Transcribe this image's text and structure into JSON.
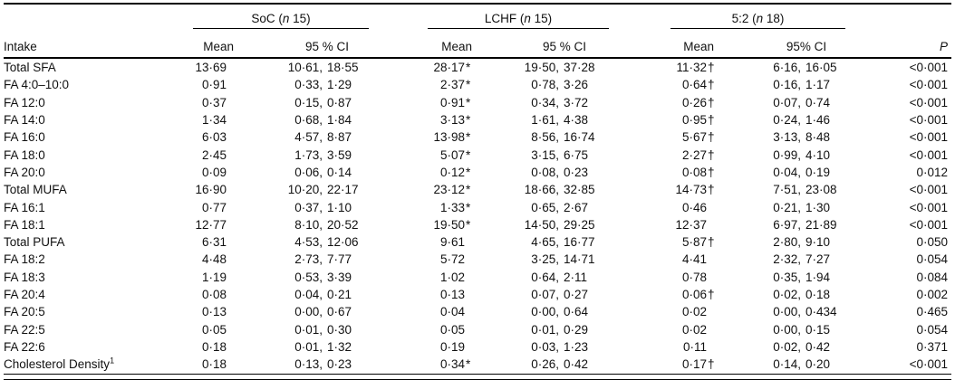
{
  "table": {
    "row_label_header": "Intake",
    "p_header": "P",
    "groups": [
      {
        "label_pre": "SoC (",
        "label_n": "n",
        "label_post": " 15)",
        "mean_header": "Mean",
        "ci_header": "95 % CI"
      },
      {
        "label_pre": "LCHF (",
        "label_n": "n",
        "label_post": " 15)",
        "mean_header": "Mean",
        "ci_header": "95 % CI"
      },
      {
        "label_pre": "5:2 (",
        "label_n": "n",
        "label_post": " 18)",
        "mean_header": "Mean",
        "ci_header": "95% CI"
      }
    ],
    "rows": [
      {
        "label": "Total SFA",
        "soc_mean": "13·69",
        "soc_marker": "",
        "soc_ci": "10·61, 18·55",
        "lchf_mean": "28·17",
        "lchf_marker": "*",
        "lchf_ci": "19·50, 37·28",
        "five2_mean": "11·32",
        "five2_marker": "†",
        "five2_ci": "6·16, 16·05",
        "p": "<0·001"
      },
      {
        "label": "FA 4:0–10:0",
        "soc_mean": "0·91",
        "soc_marker": "",
        "soc_ci": "0·33, 1·29",
        "lchf_mean": "2·37",
        "lchf_marker": "*",
        "lchf_ci": "0·78, 3·26",
        "five2_mean": "0·64",
        "five2_marker": "†",
        "five2_ci": "0·16, 1·17",
        "p": "<0·001"
      },
      {
        "label": "FA 12:0",
        "soc_mean": "0·37",
        "soc_marker": "",
        "soc_ci": "0·15, 0·87",
        "lchf_mean": "0·91",
        "lchf_marker": "*",
        "lchf_ci": "0·34, 3·72",
        "five2_mean": "0·26",
        "five2_marker": "†",
        "five2_ci": "0·07, 0·74",
        "p": "<0·001"
      },
      {
        "label": "FA 14:0",
        "soc_mean": "1·34",
        "soc_marker": "",
        "soc_ci": "0·68, 1·84",
        "lchf_mean": "3·13",
        "lchf_marker": "*",
        "lchf_ci": "1·61, 4·38",
        "five2_mean": "0·95",
        "five2_marker": "†",
        "five2_ci": "0·24, 1·46",
        "p": "<0·001"
      },
      {
        "label": "FA 16:0",
        "soc_mean": "6·03",
        "soc_marker": "",
        "soc_ci": "4·57, 8·87",
        "lchf_mean": "13·98",
        "lchf_marker": "*",
        "lchf_ci": "8·56, 16·74",
        "five2_mean": "5·67",
        "five2_marker": "†",
        "five2_ci": "3·13, 8·48",
        "p": "<0·001"
      },
      {
        "label": "FA 18:0",
        "soc_mean": "2·45",
        "soc_marker": "",
        "soc_ci": "1·73, 3·59",
        "lchf_mean": "5·07",
        "lchf_marker": "*",
        "lchf_ci": "3·15, 6·75",
        "five2_mean": "2·27",
        "five2_marker": "†",
        "five2_ci": "0·99, 4·10",
        "p": "<0·001"
      },
      {
        "label": "FA 20:0",
        "soc_mean": "0·09",
        "soc_marker": "",
        "soc_ci": "0·06, 0·14",
        "lchf_mean": "0·12",
        "lchf_marker": "*",
        "lchf_ci": "0·08, 0·23",
        "five2_mean": "0·08",
        "five2_marker": "†",
        "five2_ci": "0·04, 0·19",
        "p": "0·012"
      },
      {
        "label": "Total MUFA",
        "soc_mean": "16·90",
        "soc_marker": "",
        "soc_ci": "10·20, 22·17",
        "lchf_mean": "23·12",
        "lchf_marker": "*",
        "lchf_ci": "18·66, 32·85",
        "five2_mean": "14·73",
        "five2_marker": "†",
        "five2_ci": "7·51, 23·08",
        "p": "<0·001"
      },
      {
        "label": "FA 16:1",
        "soc_mean": "0·77",
        "soc_marker": "",
        "soc_ci": "0·37, 1·10",
        "lchf_mean": "1·33",
        "lchf_marker": "*",
        "lchf_ci": "0·65, 2·67",
        "five2_mean": "0·46",
        "five2_marker": "",
        "five2_ci": "0·21, 1·30",
        "p": "<0·001"
      },
      {
        "label": "FA 18:1",
        "soc_mean": "12·77",
        "soc_marker": "",
        "soc_ci": "8·10, 20·52",
        "lchf_mean": "19·50",
        "lchf_marker": "*",
        "lchf_ci": "14·50, 29·25",
        "five2_mean": "12·37",
        "five2_marker": "",
        "five2_ci": "6·97, 21·89",
        "p": "<0·001"
      },
      {
        "label": "Total PUFA",
        "soc_mean": "6·31",
        "soc_marker": "",
        "soc_ci": "4·53, 12·06",
        "lchf_mean": "9·61",
        "lchf_marker": "",
        "lchf_ci": "4·65, 16·77",
        "five2_mean": "5·87",
        "five2_marker": "†",
        "five2_ci": "2·80, 9·10",
        "p": "0·050"
      },
      {
        "label": "FA 18:2",
        "soc_mean": "4·48",
        "soc_marker": "",
        "soc_ci": "2·73, 7·77",
        "lchf_mean": "5·72",
        "lchf_marker": "",
        "lchf_ci": "3·25, 14·71",
        "five2_mean": "4·41",
        "five2_marker": "",
        "five2_ci": "2·32, 7·27",
        "p": "0·054"
      },
      {
        "label": "FA 18:3",
        "soc_mean": "1·19",
        "soc_marker": "",
        "soc_ci": "0·53, 3·39",
        "lchf_mean": "1·02",
        "lchf_marker": "",
        "lchf_ci": "0·64, 2·11",
        "five2_mean": "0·78",
        "five2_marker": "",
        "five2_ci": "0·35, 1·94",
        "p": "0·084"
      },
      {
        "label": "FA 20:4",
        "soc_mean": "0·08",
        "soc_marker": "",
        "soc_ci": "0·04, 0·21",
        "lchf_mean": "0·13",
        "lchf_marker": "",
        "lchf_ci": "0·07, 0·27",
        "five2_mean": "0·06",
        "five2_marker": "†",
        "five2_ci": "0·02, 0·18",
        "p": "0·002"
      },
      {
        "label": "FA 20:5",
        "soc_mean": "0·13",
        "soc_marker": "",
        "soc_ci": "0·00, 0·67",
        "lchf_mean": "0·04",
        "lchf_marker": "",
        "lchf_ci": "0·00, 0·64",
        "five2_mean": "0·02",
        "five2_marker": "",
        "five2_ci": "0·00, 0·434",
        "p": "0·465"
      },
      {
        "label": "FA 22:5",
        "soc_mean": "0·05",
        "soc_marker": "",
        "soc_ci": "0·01, 0·30",
        "lchf_mean": "0·05",
        "lchf_marker": "",
        "lchf_ci": "0·01, 0·29",
        "five2_mean": "0·02",
        "five2_marker": "",
        "five2_ci": "0·00, 0·15",
        "p": "0·054"
      },
      {
        "label": "FA 22:6",
        "soc_mean": "0·18",
        "soc_marker": "",
        "soc_ci": "0·01, 1·32",
        "lchf_mean": "0·19",
        "lchf_marker": "",
        "lchf_ci": "0·03, 1·23",
        "five2_mean": "0·11",
        "five2_marker": "",
        "five2_ci": "0·02, 0·42",
        "p": "0·371"
      },
      {
        "label": "Cholesterol Density",
        "label_sup": "1",
        "soc_mean": "0·18",
        "soc_marker": "",
        "soc_ci": "0·13, 0·23",
        "lchf_mean": "0·34",
        "lchf_marker": "*",
        "lchf_ci": "0·26, 0·42",
        "five2_mean": "0·17",
        "five2_marker": "†",
        "five2_ci": "0·14, 0·20",
        "p": "<0·001"
      }
    ]
  },
  "colors": {
    "text": "#111111",
    "rule": "#000000",
    "background": "#ffffff"
  }
}
